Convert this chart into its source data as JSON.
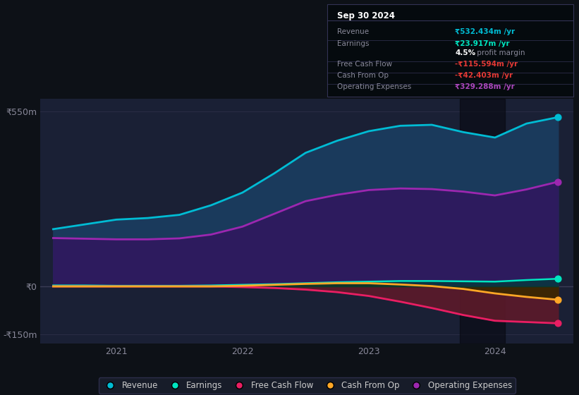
{
  "bg_color": "#0d1117",
  "plot_bg_color": "#1a2035",
  "title_box": {
    "date": "Sep 30 2024",
    "rows": [
      {
        "label": "Revenue",
        "value": "₹532.434m /yr",
        "value_color": "#00bcd4"
      },
      {
        "label": "Earnings",
        "value": "₹23.917m /yr",
        "value_color": "#00e5c0"
      },
      {
        "label": "",
        "value": "4.5%",
        "suffix": " profit margin",
        "value_color": "#ffffff"
      },
      {
        "label": "Free Cash Flow",
        "value": "-₹115.594m /yr",
        "value_color": "#e53935"
      },
      {
        "label": "Cash From Op",
        "value": "-₹42.403m /yr",
        "value_color": "#e53935"
      },
      {
        "label": "Operating Expenses",
        "value": "₹329.288m /yr",
        "value_color": "#ab47bc"
      }
    ]
  },
  "ylim": [
    -180,
    590
  ],
  "yticks": [
    550,
    0,
    -150
  ],
  "ytick_labels": [
    "₹550m",
    "₹0",
    "-₹150m"
  ],
  "xticks": [
    2021,
    2022,
    2023,
    2024
  ],
  "highlight_x_start": 2023.72,
  "highlight_x_end": 2024.08,
  "xlim_start": 2020.4,
  "xlim_end": 2024.62,
  "series": {
    "revenue": {
      "x": [
        2020.5,
        2020.75,
        2021.0,
        2021.25,
        2021.5,
        2021.75,
        2022.0,
        2022.25,
        2022.5,
        2022.75,
        2023.0,
        2023.25,
        2023.5,
        2023.75,
        2024.0,
        2024.25,
        2024.5
      ],
      "y": [
        180,
        195,
        210,
        215,
        225,
        255,
        295,
        355,
        420,
        458,
        488,
        505,
        508,
        485,
        468,
        512,
        532
      ],
      "color": "#00bcd4",
      "fill_color": "#1a3a5c",
      "lw": 2.0
    },
    "operating_expenses": {
      "x": [
        2020.5,
        2020.75,
        2021.0,
        2021.25,
        2021.5,
        2021.75,
        2022.0,
        2022.25,
        2022.5,
        2022.75,
        2023.0,
        2023.25,
        2023.5,
        2023.75,
        2024.0,
        2024.25,
        2024.5
      ],
      "y": [
        152,
        150,
        148,
        148,
        151,
        163,
        188,
        228,
        268,
        288,
        303,
        308,
        306,
        298,
        286,
        305,
        329
      ],
      "color": "#9c27b0",
      "fill_color": "#2d1b5e",
      "lw": 2.0
    },
    "earnings": {
      "x": [
        2020.5,
        2020.75,
        2021.0,
        2021.25,
        2021.5,
        2021.75,
        2022.0,
        2022.25,
        2022.5,
        2022.75,
        2023.0,
        2023.25,
        2023.5,
        2023.75,
        2024.0,
        2024.25,
        2024.5
      ],
      "y": [
        3,
        3,
        2,
        2,
        2,
        3,
        5,
        7,
        10,
        13,
        15,
        17,
        17,
        16,
        15,
        20,
        24
      ],
      "color": "#00e5c0",
      "fill_color": "#003d38",
      "lw": 1.8
    },
    "free_cash_flow": {
      "x": [
        2020.5,
        2020.75,
        2021.0,
        2021.25,
        2021.5,
        2021.75,
        2022.0,
        2022.25,
        2022.5,
        2022.75,
        2023.0,
        2023.25,
        2023.5,
        2023.75,
        2024.0,
        2024.25,
        2024.5
      ],
      "y": [
        0,
        0,
        0,
        0,
        0,
        0,
        -2,
        -5,
        -10,
        -18,
        -30,
        -48,
        -68,
        -90,
        -108,
        -112,
        -116
      ],
      "color": "#e91e63",
      "fill_color": "#5c1a2a",
      "lw": 2.0
    },
    "cash_from_op": {
      "x": [
        2020.5,
        2020.75,
        2021.0,
        2021.25,
        2021.5,
        2021.75,
        2022.0,
        2022.25,
        2022.5,
        2022.75,
        2023.0,
        2023.25,
        2023.5,
        2023.75,
        2024.0,
        2024.25,
        2024.5
      ],
      "y": [
        0,
        0,
        0,
        0,
        0,
        0,
        2,
        5,
        8,
        10,
        10,
        6,
        1,
        -8,
        -22,
        -33,
        -42
      ],
      "color": "#ffa726",
      "fill_color": "#3a2800",
      "lw": 2.0
    }
  },
  "legend": [
    {
      "label": "Revenue",
      "color": "#00bcd4"
    },
    {
      "label": "Earnings",
      "color": "#00e5c0"
    },
    {
      "label": "Free Cash Flow",
      "color": "#e91e63"
    },
    {
      "label": "Cash From Op",
      "color": "#ffa726"
    },
    {
      "label": "Operating Expenses",
      "color": "#9c27b0"
    }
  ]
}
